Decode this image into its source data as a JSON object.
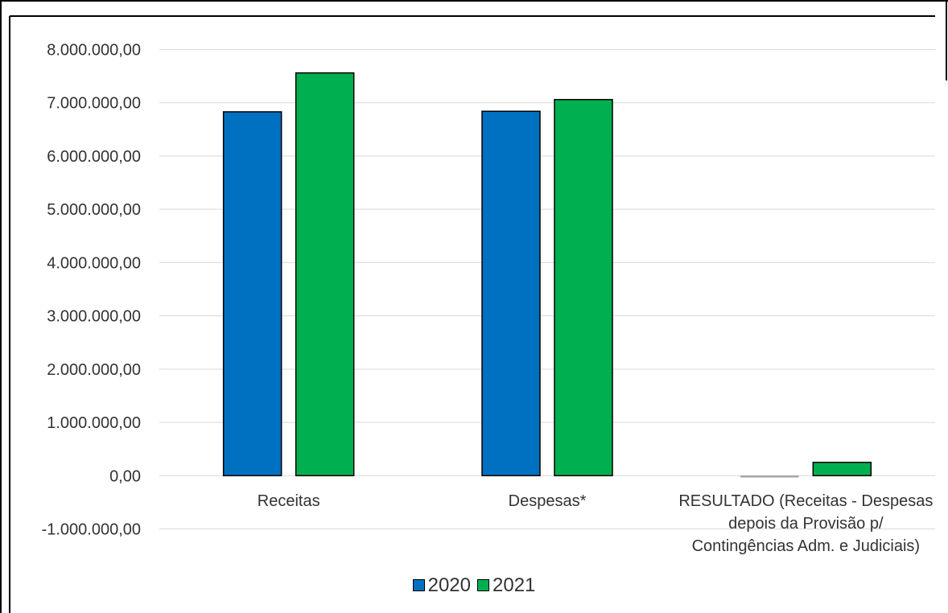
{
  "chart_data": {
    "type": "bar",
    "categories": [
      "Receitas",
      "Despesas*",
      "RESULTADO (Receitas - Despesas depois da Provisão p/ Contingências Adm. e Judiciais)"
    ],
    "category_label_lines": [
      [
        "Receitas"
      ],
      [
        "Despesas*"
      ],
      [
        "RESULTADO (Receitas - Despesas",
        "depois da Provisão p/",
        "Contingências Adm. e Judiciais)"
      ]
    ],
    "series": [
      {
        "name": "2020",
        "color": "#0070C0",
        "values": [
          6830000,
          6840000,
          -15000
        ]
      },
      {
        "name": "2021",
        "color": "#00B050",
        "values": [
          7560000,
          7060000,
          250000
        ]
      }
    ],
    "ylim": [
      -1000000,
      8000000
    ],
    "yticks": [
      8000000,
      7000000,
      6000000,
      5000000,
      4000000,
      3000000,
      2000000,
      1000000,
      0,
      -1000000
    ],
    "ytick_labels": [
      "8.000.000,00",
      "7.000.000,00",
      "6.000.000,00",
      "5.000.000,00",
      "4.000.000,00",
      "3.000.000,00",
      "2.000.000,00",
      "1.000.000,00",
      "0,00",
      "-1.000.000,00"
    ],
    "grid": true,
    "legend_position": "bottom",
    "title": "",
    "xlabel": "",
    "ylabel": ""
  }
}
